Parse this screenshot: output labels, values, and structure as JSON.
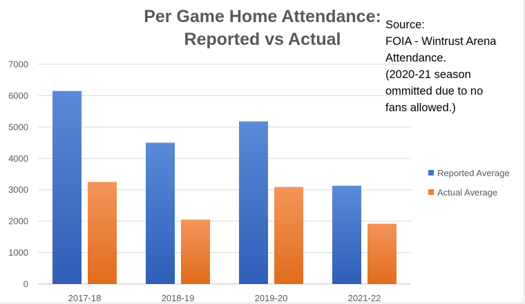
{
  "chart_data": {
    "type": "bar",
    "title": [
      "Per Game Home Attendance:",
      "Reported vs Actual"
    ],
    "categories": [
      "2017-18",
      "2018-19",
      "2019-20",
      "2021-22"
    ],
    "series": [
      {
        "name": "Reported Average",
        "color": "#4472C4",
        "values": [
          6150,
          4500,
          5180,
          3130
        ]
      },
      {
        "name": "Actual Average",
        "color": "#ED7D31",
        "values": [
          3250,
          2050,
          3090,
          1920
        ]
      }
    ],
    "ylim": [
      0,
      7000
    ],
    "yticks": [
      0,
      1000,
      2000,
      3000,
      4000,
      5000,
      6000,
      7000
    ],
    "grid": true,
    "legend": "right"
  },
  "annotation": {
    "lines": [
      "Source:",
      "FOIA - Wintrust Arena",
      "Attendance.",
      "(2020-21 season",
      "ommitted due to no",
      "fans allowed.)"
    ]
  }
}
